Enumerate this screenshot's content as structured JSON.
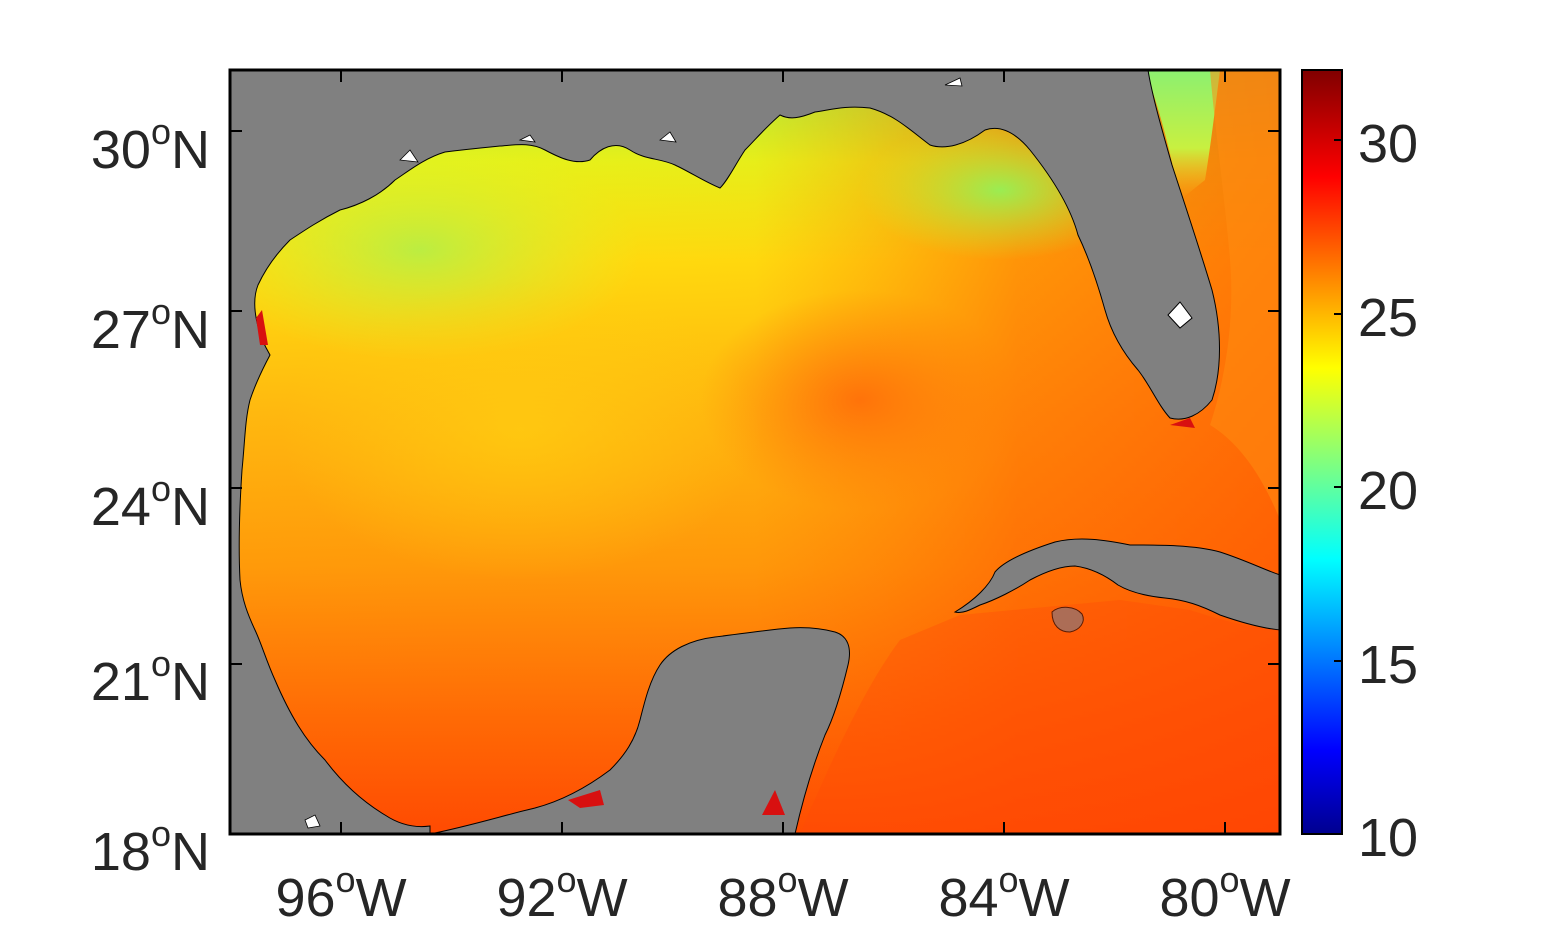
{
  "map": {
    "y_ticks": [
      {
        "deg": "30",
        "sup": "o",
        "hemi": "N"
      },
      {
        "deg": "27",
        "sup": "o",
        "hemi": "N"
      },
      {
        "deg": "24",
        "sup": "o",
        "hemi": "N"
      },
      {
        "deg": "21",
        "sup": "o",
        "hemi": "N"
      },
      {
        "deg": "18",
        "sup": "o",
        "hemi": "N"
      }
    ],
    "x_ticks": [
      {
        "deg": "96",
        "sup": "o",
        "hemi": "W"
      },
      {
        "deg": "92",
        "sup": "o",
        "hemi": "W"
      },
      {
        "deg": "88",
        "sup": "o",
        "hemi": "W"
      },
      {
        "deg": "84",
        "sup": "o",
        "hemi": "W"
      },
      {
        "deg": "80",
        "sup": "o",
        "hemi": "W"
      }
    ],
    "lat_range": [
      18,
      31
    ],
    "lon_range": [
      -98,
      -79
    ],
    "land_color": "#808080",
    "colormap": "jet",
    "colorbar": {
      "min": 10,
      "max": 32,
      "ticks": [
        "30",
        "25",
        "20",
        "15",
        "10"
      ],
      "tick_values": [
        30,
        25,
        20,
        15,
        10
      ]
    }
  }
}
